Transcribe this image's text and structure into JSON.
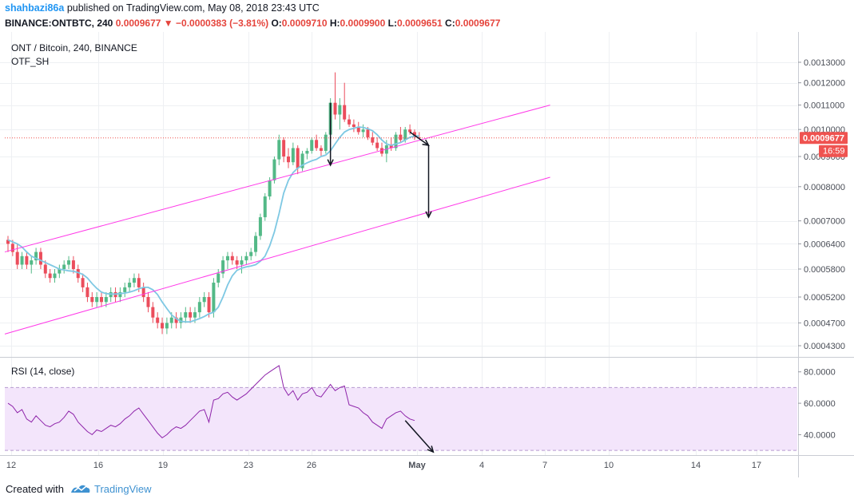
{
  "header": {
    "author": "shahbazi86a",
    "published_text": "published on TradingView.com, May 08, 2018 23:43 UTC",
    "symbol_line": "BINANCE:ONTBTC, 240",
    "last": "0.0009677",
    "change_arrow": "▼",
    "change": "−0.0000383 (−3.81%)",
    "open_label": "O:",
    "open": "0.0009710",
    "high_label": "H:",
    "high": "0.0009900",
    "low_label": "L:",
    "low": "0.0009651",
    "close_label": "C:",
    "close": "0.0009677"
  },
  "price_pane": {
    "title": "ONT / Bitcoin, 240, BINANCE",
    "indicator": "OTF_SH",
    "price_tag": "0.0009677",
    "countdown": "16:59"
  },
  "rsi_pane": {
    "title": "RSI (14, close)"
  },
  "footer": {
    "created_with": "Created with",
    "brand": "TradingView"
  },
  "colors": {
    "up": "#53b987",
    "down": "#eb4d5c",
    "ma": "#7ec8e3",
    "channel": "#ff39e8",
    "rsi_line": "#8e24aa",
    "rsi_band": "#f3e5fb",
    "price_tag": "#ef5350"
  },
  "chart_data": [
    {
      "type": "candlestick",
      "title": "ONT / Bitcoin, 240, BINANCE",
      "x_ticks": [
        "12",
        "16",
        "19",
        "23",
        "26",
        "May",
        "4",
        "7",
        "10",
        "14",
        "17"
      ],
      "y_ticks": [
        "0.0013000",
        "0.0012000",
        "0.0011000",
        "0.0010000",
        "0.0009000",
        "0.0008000",
        "0.0007000",
        "0.0006400",
        "0.0005800",
        "0.0005200",
        "0.0004700",
        "0.0004300"
      ],
      "y_scale": "log",
      "last_price": 0.0009677,
      "candles": [
        [
          0.00065,
          0.00066,
          0.00062,
          0.00064
        ],
        [
          0.00064,
          0.00065,
          0.00061,
          0.00062
        ],
        [
          0.00062,
          0.00064,
          0.00058,
          0.00059
        ],
        [
          0.00059,
          0.00062,
          0.00058,
          0.00061
        ],
        [
          0.00061,
          0.00062,
          0.00058,
          0.00059
        ],
        [
          0.00059,
          0.00061,
          0.00057,
          0.0006
        ],
        [
          0.0006,
          0.00063,
          0.00059,
          0.00062
        ],
        [
          0.00062,
          0.00063,
          0.00058,
          0.00059
        ],
        [
          0.00059,
          0.0006,
          0.00056,
          0.00057
        ],
        [
          0.00057,
          0.00058,
          0.00055,
          0.00056
        ],
        [
          0.00056,
          0.00058,
          0.00055,
          0.00057
        ],
        [
          0.00057,
          0.00059,
          0.00056,
          0.00058
        ],
        [
          0.00058,
          0.0006,
          0.00057,
          0.00059
        ],
        [
          0.00059,
          0.00061,
          0.00058,
          0.0006
        ],
        [
          0.0006,
          0.00061,
          0.00057,
          0.00058
        ],
        [
          0.00058,
          0.00059,
          0.00055,
          0.00056
        ],
        [
          0.00056,
          0.00057,
          0.00053,
          0.00054
        ],
        [
          0.00054,
          0.00055,
          0.00051,
          0.00052
        ],
        [
          0.00052,
          0.00053,
          0.0005,
          0.00051
        ],
        [
          0.00051,
          0.00053,
          0.0005,
          0.00052
        ],
        [
          0.00052,
          0.00053,
          0.0005,
          0.00051
        ],
        [
          0.00051,
          0.00053,
          0.0005,
          0.00052
        ],
        [
          0.00052,
          0.00054,
          0.00051,
          0.00053
        ],
        [
          0.00053,
          0.00054,
          0.00051,
          0.00052
        ],
        [
          0.00052,
          0.00054,
          0.00051,
          0.00053
        ],
        [
          0.00053,
          0.00055,
          0.00052,
          0.00054
        ],
        [
          0.00054,
          0.00056,
          0.00053,
          0.00055
        ],
        [
          0.00055,
          0.00057,
          0.00054,
          0.00056
        ],
        [
          0.00056,
          0.00057,
          0.00053,
          0.00054
        ],
        [
          0.00054,
          0.00055,
          0.00051,
          0.00052
        ],
        [
          0.00052,
          0.00053,
          0.00049,
          0.0005
        ],
        [
          0.0005,
          0.00051,
          0.00047,
          0.00048
        ],
        [
          0.00048,
          0.00049,
          0.00046,
          0.00047
        ],
        [
          0.00047,
          0.00048,
          0.00045,
          0.00046
        ],
        [
          0.00046,
          0.00048,
          0.00045,
          0.00047
        ],
        [
          0.00047,
          0.00049,
          0.00046,
          0.00048
        ],
        [
          0.00048,
          0.00049,
          0.00046,
          0.00047
        ],
        [
          0.00047,
          0.00049,
          0.00046,
          0.00048
        ],
        [
          0.00048,
          0.0005,
          0.00047,
          0.00049
        ],
        [
          0.00049,
          0.0005,
          0.00047,
          0.00048
        ],
        [
          0.00048,
          0.0005,
          0.00047,
          0.00049
        ],
        [
          0.00049,
          0.00052,
          0.00048,
          0.00051
        ],
        [
          0.00051,
          0.00053,
          0.0005,
          0.00052
        ],
        [
          0.00052,
          0.00053,
          0.00048,
          0.00049
        ],
        [
          0.00049,
          0.00056,
          0.00048,
          0.00055
        ],
        [
          0.00055,
          0.00058,
          0.00054,
          0.00057
        ],
        [
          0.00057,
          0.00061,
          0.00056,
          0.0006
        ],
        [
          0.0006,
          0.00062,
          0.00058,
          0.00061
        ],
        [
          0.00061,
          0.00062,
          0.00059,
          0.0006
        ],
        [
          0.0006,
          0.00061,
          0.00058,
          0.00059
        ],
        [
          0.00059,
          0.00061,
          0.00057,
          0.0006
        ],
        [
          0.0006,
          0.00062,
          0.00059,
          0.00061
        ],
        [
          0.00061,
          0.00063,
          0.0006,
          0.00062
        ],
        [
          0.00062,
          0.00067,
          0.00061,
          0.00066
        ],
        [
          0.00066,
          0.00072,
          0.00065,
          0.00071
        ],
        [
          0.00071,
          0.00078,
          0.0007,
          0.00077
        ],
        [
          0.00077,
          0.00083,
          0.00076,
          0.00082
        ],
        [
          0.00082,
          0.0009,
          0.00081,
          0.00089
        ],
        [
          0.00089,
          0.00098,
          0.00087,
          0.00096
        ],
        [
          0.00096,
          0.00097,
          0.00088,
          0.0009
        ],
        [
          0.0009,
          0.00093,
          0.00086,
          0.00088
        ],
        [
          0.00088,
          0.00095,
          0.00087,
          0.00093
        ],
        [
          0.00093,
          0.00094,
          0.00084,
          0.00086
        ],
        [
          0.00086,
          0.00092,
          0.00085,
          0.00091
        ],
        [
          0.00091,
          0.00093,
          0.00089,
          0.00092
        ],
        [
          0.00092,
          0.00097,
          0.00091,
          0.00096
        ],
        [
          0.00096,
          0.00098,
          0.00092,
          0.00093
        ],
        [
          0.00093,
          0.00094,
          0.0009,
          0.00092
        ],
        [
          0.00092,
          0.00099,
          0.00091,
          0.00098
        ],
        [
          0.00098,
          0.00113,
          0.00097,
          0.00111
        ],
        [
          0.00111,
          0.00125,
          0.00104,
          0.00106
        ],
        [
          0.00106,
          0.00113,
          0.001,
          0.0011
        ],
        [
          0.0011,
          0.0012,
          0.00103,
          0.00104
        ],
        [
          0.00104,
          0.00106,
          0.00101,
          0.00102
        ],
        [
          0.00102,
          0.00104,
          0.00099,
          0.00101
        ],
        [
          0.00101,
          0.00103,
          0.00098,
          0.00099
        ],
        [
          0.00099,
          0.00102,
          0.00097,
          0.001
        ],
        [
          0.001,
          0.00101,
          0.00096,
          0.00097
        ],
        [
          0.00097,
          0.00099,
          0.00094,
          0.00095
        ],
        [
          0.00095,
          0.00097,
          0.00092,
          0.00093
        ],
        [
          0.00093,
          0.00095,
          0.0009,
          0.00091
        ],
        [
          0.00091,
          0.00096,
          0.00088,
          0.00094
        ],
        [
          0.00094,
          0.00097,
          0.00092,
          0.00093
        ],
        [
          0.00093,
          0.00099,
          0.00092,
          0.00098
        ],
        [
          0.00098,
          0.00101,
          0.00095,
          0.00096
        ],
        [
          0.00096,
          0.00101,
          0.00095,
          0.001
        ],
        [
          0.001,
          0.00102,
          0.00098,
          0.00099
        ],
        [
          0.00099,
          0.001,
          0.00096,
          0.00097
        ],
        [
          0.00097,
          0.00099,
          0.000965,
          0.000968
        ]
      ],
      "ma": [
        0.00065,
        0.000645,
        0.00064,
        0.000632,
        0.00062,
        0.00061,
        0.000605,
        0.0006,
        0.000595,
        0.00059,
        0.000585,
        0.00058,
        0.000578,
        0.000576,
        0.000575,
        0.000572,
        0.000568,
        0.00056,
        0.000548,
        0.000538,
        0.00053,
        0.000527,
        0.000526,
        0.000526,
        0.000527,
        0.000528,
        0.00053,
        0.000533,
        0.000537,
        0.00054,
        0.00054,
        0.000535,
        0.000525,
        0.00051,
        0.000497,
        0.000485,
        0.000478,
        0.000473,
        0.000472,
        0.000472,
        0.000475,
        0.000478,
        0.000482,
        0.000487,
        0.00049,
        0.0005,
        0.00052,
        0.000545,
        0.000565,
        0.000577,
        0.000582,
        0.000585,
        0.000587,
        0.00059,
        0.000598,
        0.00061,
        0.000635,
        0.00067,
        0.00072,
        0.00078,
        0.00082,
        0.000845,
        0.00086,
        0.00087,
        0.000878,
        0.000885,
        0.00089,
        0.0009,
        0.000905,
        0.00092,
        0.000945,
        0.00097,
        0.00099,
        0.001,
        0.001005,
        0.00101,
        0.001008,
        0.001003,
        0.000995,
        0.00098,
        0.00096,
        0.000945,
        0.00094,
        0.000945,
        0.00095,
        0.00096,
        0.00097,
        0.000975,
        0.000975
      ],
      "channel_upper": [
        [
          0,
          0.00062
        ],
        [
          88,
          0.00096
        ],
        [
          116,
          0.0011
        ]
      ],
      "channel_lower": [
        [
          0,
          0.00045
        ],
        [
          116,
          0.00083
        ]
      ],
      "arrows": [
        [
          [
            69,
            0.00111
          ],
          [
            69,
            0.00087
          ]
        ],
        [
          [
            86,
            0.00099
          ],
          [
            90,
            0.00094
          ]
        ],
        [
          [
            90,
            0.00094
          ],
          [
            90,
            0.00071
          ]
        ]
      ]
    },
    {
      "type": "line",
      "title": "RSI (14, close)",
      "y_ticks": [
        "80.0000",
        "60.0000",
        "40.0000"
      ],
      "ylim": [
        27,
        88
      ],
      "band": [
        30,
        70
      ],
      "values": [
        60,
        58,
        54,
        56,
        50,
        48,
        52,
        49,
        46,
        45,
        47,
        48,
        51,
        55,
        53,
        48,
        45,
        42,
        40,
        43,
        42,
        44,
        46,
        45,
        47,
        50,
        52,
        55,
        57,
        53,
        49,
        45,
        41,
        38,
        40,
        43,
        45,
        44,
        46,
        49,
        52,
        55,
        56,
        48,
        62,
        63,
        66,
        67,
        64,
        62,
        64,
        66,
        69,
        72,
        75,
        78,
        80,
        82,
        84,
        70,
        65,
        68,
        62,
        66,
        67,
        70,
        65,
        64,
        68,
        72,
        68,
        70,
        71,
        59,
        58,
        57,
        54,
        52,
        48,
        46,
        44,
        50,
        52,
        54,
        55,
        52,
        50,
        49
      ]
    }
  ]
}
